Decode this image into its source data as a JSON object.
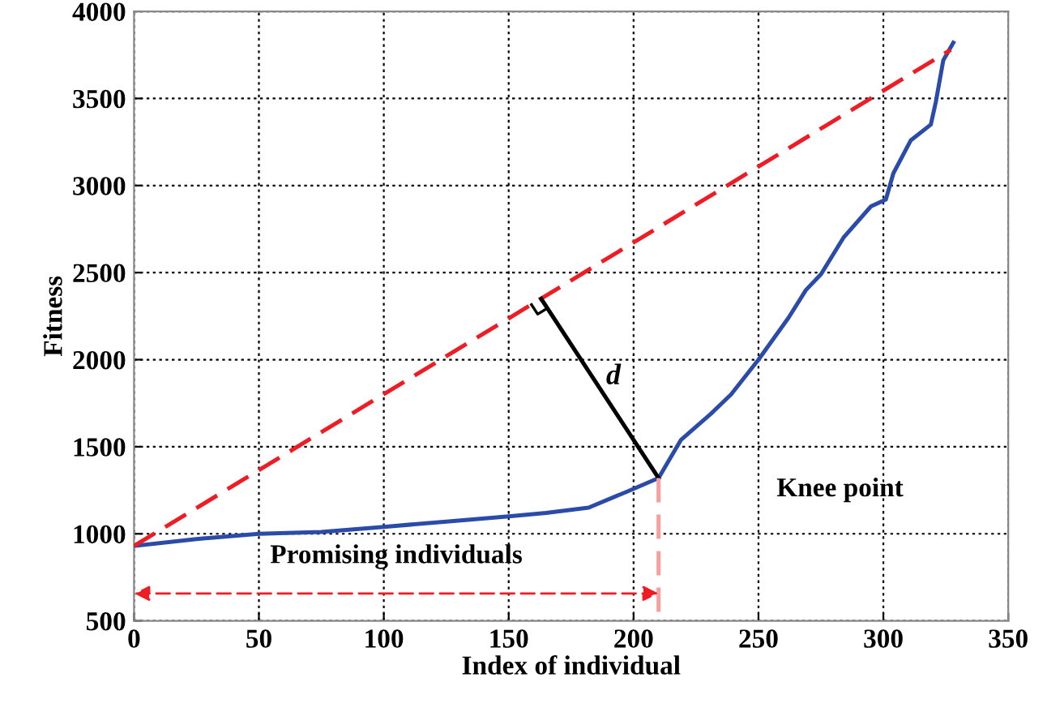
{
  "chart_data": {
    "type": "line",
    "xlabel": "Index of individual",
    "ylabel": "Fitness",
    "xlim": [
      0,
      350
    ],
    "ylim": [
      500,
      4000
    ],
    "xticks": [
      0,
      50,
      100,
      150,
      200,
      250,
      300,
      350
    ],
    "yticks": [
      500,
      1000,
      1500,
      2000,
      2500,
      3000,
      3500,
      4000
    ],
    "grid": true,
    "marker": "none",
    "series": [
      {
        "color": "#2b4ba8",
        "line_style": "solid",
        "x": [
          0,
          25,
          50,
          75,
          100,
          125,
          150,
          165,
          182,
          197,
          210,
          219,
          231,
          239,
          250,
          262,
          269,
          275,
          284,
          295,
          301,
          304,
          311,
          319,
          321,
          324,
          328
        ],
        "values": [
          930,
          970,
          1000,
          1010,
          1040,
          1070,
          1100,
          1120,
          1150,
          1240,
          1320,
          1540,
          1690,
          1800,
          2000,
          2240,
          2400,
          2490,
          2700,
          2880,
          2920,
          3070,
          3260,
          3350,
          3480,
          3720,
          3820
        ]
      },
      {
        "color": "#ee1c24",
        "line_style": "dashed",
        "x": [
          0,
          327
        ],
        "values": [
          930,
          3780
        ]
      },
      {
        "color": "#000000",
        "line_style": "solid",
        "x": [
          163,
          210
        ],
        "values": [
          2350,
          1320
        ]
      },
      {
        "color": "#f4a0a0",
        "line_style": "dashed",
        "x": [
          210,
          210
        ],
        "values": [
          1320,
          500
        ]
      }
    ],
    "annotations": [
      "Knee point",
      "d",
      "Promising individuals"
    ]
  }
}
